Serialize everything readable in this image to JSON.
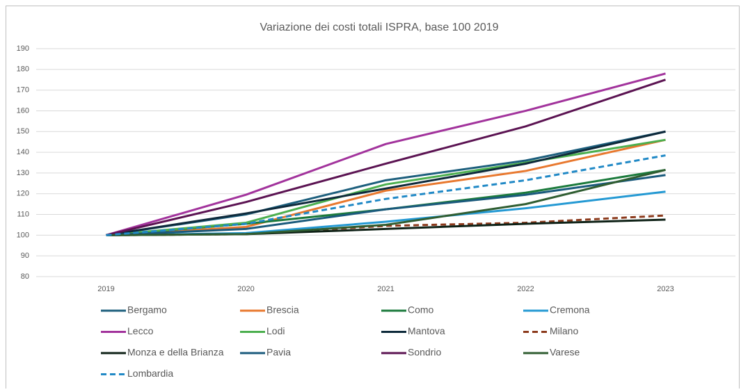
{
  "chart_data": {
    "type": "line",
    "title": "Variazione dei costi totali ISPRA, base 100 2019",
    "categories": [
      "2019",
      "2020",
      "2021",
      "2022",
      "2023"
    ],
    "ylim": [
      80,
      190
    ],
    "yticks": [
      80,
      90,
      100,
      110,
      120,
      130,
      140,
      150,
      160,
      170,
      180,
      190
    ],
    "grid": true,
    "series": [
      {
        "name": "Bergamo",
        "color": "#1d5f7d",
        "values": [
          100,
          110,
          126.5,
          136,
          150
        ]
      },
      {
        "name": "Brescia",
        "color": "#e8782e",
        "values": [
          100,
          104,
          121.5,
          131,
          146
        ]
      },
      {
        "name": "Como",
        "color": "#1b7a3c",
        "values": [
          100,
          105.5,
          112.5,
          120.5,
          131.5
        ]
      },
      {
        "name": "Cremona",
        "color": "#2499d3",
        "values": [
          100,
          101,
          106.5,
          113,
          121
        ]
      },
      {
        "name": "Lecco",
        "color": "#a2339c",
        "values": [
          100,
          119.5,
          144,
          160,
          178
        ]
      },
      {
        "name": "Lodi",
        "color": "#4caf4f",
        "values": [
          100,
          106,
          124.5,
          135,
          146
        ]
      },
      {
        "name": "Mantova",
        "color": "#0e2a3b",
        "values": [
          100,
          110.5,
          122.5,
          134.5,
          150
        ]
      },
      {
        "name": "Milano",
        "color": "#8c3a1c",
        "dashed": true,
        "values": [
          100,
          100.5,
          104.5,
          106,
          109.5
        ]
      },
      {
        "name": "Monza e della Brianza",
        "color": "#0e2116",
        "values": [
          100,
          100.5,
          103,
          105.5,
          107.5
        ]
      },
      {
        "name": "Pavia",
        "color": "#1a5a7c",
        "values": [
          100,
          103,
          112.5,
          119.5,
          129
        ]
      },
      {
        "name": "Sondrio",
        "color": "#5b1352",
        "values": [
          100,
          116,
          134.5,
          152.5,
          175
        ]
      },
      {
        "name": "Varese",
        "color": "#2f5d31",
        "values": [
          100,
          100.5,
          105,
          115,
          131.5
        ]
      },
      {
        "name": "Lombardia",
        "color": "#2189c6",
        "dashed": true,
        "values": [
          100,
          105.5,
          117.5,
          126.5,
          138.5
        ]
      }
    ]
  }
}
